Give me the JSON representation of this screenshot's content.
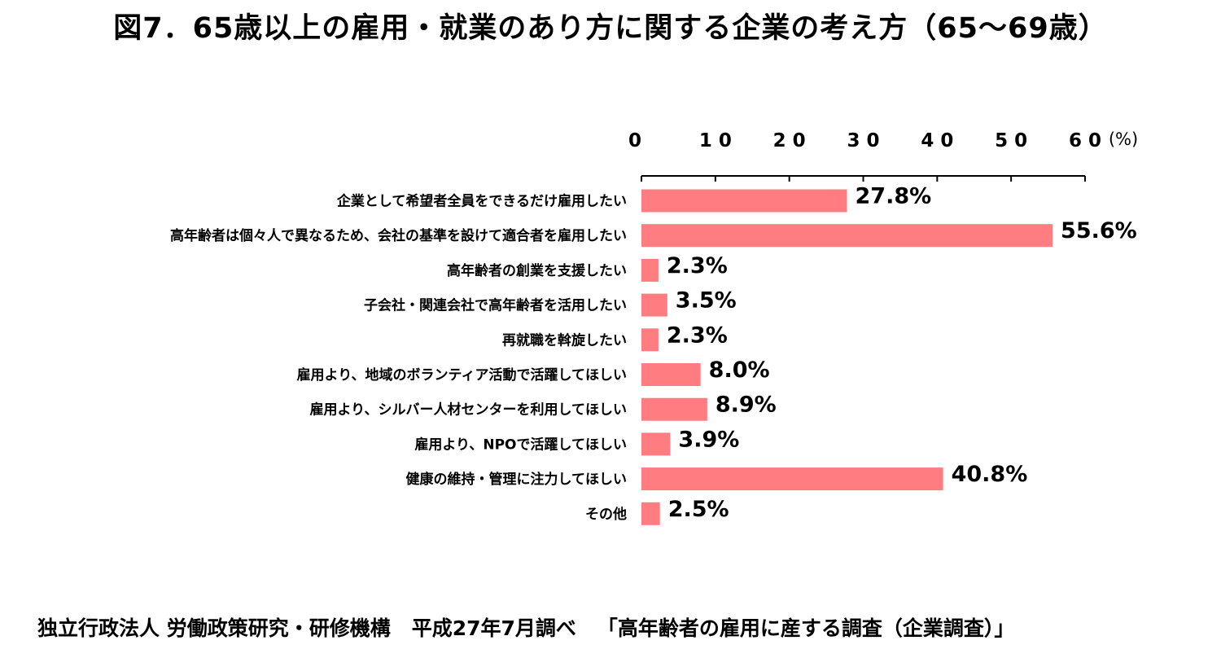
{
  "title": "図7．65歳以上の雇用・就業のあり方に関する企業の考え方（65～69歳）",
  "source": {
    "organization": "独立行政法人 労働政策研究・研修機構",
    "date": "平成27年7月調べ",
    "survey": "「高年齢者の雇用に産する調査（企業調査）」"
  },
  "colors": {
    "bar": "#ff7c80",
    "axis": "#000000",
    "text": "#000000"
  },
  "chart_data": {
    "type": "bar",
    "orientation": "horizontal",
    "title": "図7．65歳以上の雇用・就業のあり方に関する企業の考え方（65～69歳）",
    "x_unit_label": "(%)",
    "xlim": [
      0,
      60
    ],
    "x_ticks": [
      "0",
      "1 0",
      "2 0",
      "3 0",
      "4 0",
      "5 0",
      "6 0"
    ],
    "axis_position": "top",
    "grid": false,
    "legend": "none",
    "categories": [
      "企業として希望者全員をできるだけ雇用したい",
      "高年齢者は個々人で異なるため、会社の基準を設けて適合者を雇用したい",
      "高年齢者の創業を支援したい",
      "子会社・関連会社で高年齢者を活用したい",
      "再就職を斡旋したい",
      "雇用より、地域のボランティア活動で活躍してほしい",
      "雇用より、シルバー人材センターを利用してほしい",
      "雇用より、NPOで活躍してほしい",
      "健康の維持・管理に注力してほしい",
      "その他"
    ],
    "values": [
      27.8,
      55.6,
      2.3,
      3.5,
      2.3,
      8.0,
      8.9,
      3.9,
      40.8,
      2.5
    ],
    "data_labels": [
      "27.8%",
      "55.6%",
      "2.3%",
      "3.5%",
      "2.3%",
      "8.0%",
      "8.9%",
      "3.9%",
      "40.8%",
      "2.5%"
    ]
  }
}
